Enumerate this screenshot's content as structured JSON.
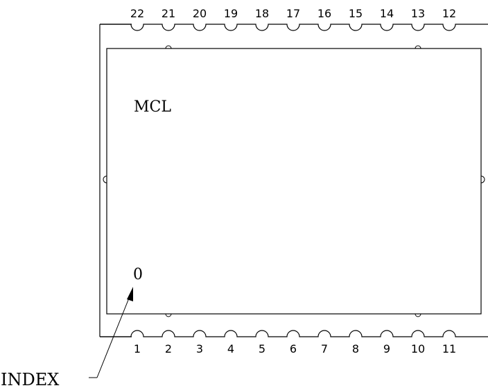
{
  "diagram": {
    "top_pins": [
      "22",
      "21",
      "20",
      "19",
      "18",
      "17",
      "16",
      "15",
      "14",
      "13",
      "12"
    ],
    "bottom_pins": [
      "1",
      "2",
      "3",
      "4",
      "5",
      "6",
      "7",
      "8",
      "9",
      "10",
      "11"
    ],
    "body_label": "MCL",
    "index_marker": "0",
    "index_label": "INDEX"
  }
}
